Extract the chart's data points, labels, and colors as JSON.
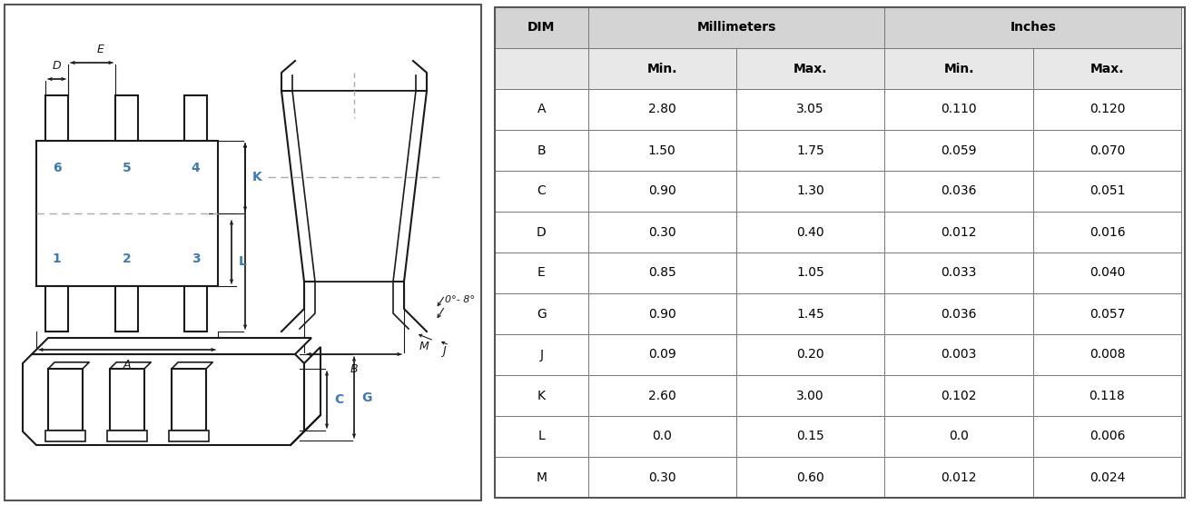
{
  "table_headers_row1": [
    "DIM",
    "Millimeters",
    "",
    "Inches",
    ""
  ],
  "table_headers_row2": [
    "",
    "Min.",
    "Max.",
    "Min.",
    "Max."
  ],
  "table_data": [
    [
      "A",
      "2.80",
      "3.05",
      "0.110",
      "0.120"
    ],
    [
      "B",
      "1.50",
      "1.75",
      "0.059",
      "0.070"
    ],
    [
      "C",
      "0.90",
      "1.30",
      "0.036",
      "0.051"
    ],
    [
      "D",
      "0.30",
      "0.40",
      "0.012",
      "0.016"
    ],
    [
      "E",
      "0.85",
      "1.05",
      "0.033",
      "0.040"
    ],
    [
      "G",
      "0.90",
      "1.45",
      "0.036",
      "0.057"
    ],
    [
      "J",
      "0.09",
      "0.20",
      "0.003",
      "0.008"
    ],
    [
      "K",
      "2.60",
      "3.00",
      "0.102",
      "0.118"
    ],
    [
      "L",
      "0.0",
      "0.15",
      "0.0",
      "0.006"
    ],
    [
      "M",
      "0.30",
      "0.60",
      "0.012",
      "0.024"
    ]
  ],
  "header_bg": "#d4d4d4",
  "subheader_bg": "#e8e8e8",
  "label_color": "#3a7abf",
  "line_color": "#1a1a1a",
  "figure_bg": "#ffffff",
  "border_color": "#555555"
}
